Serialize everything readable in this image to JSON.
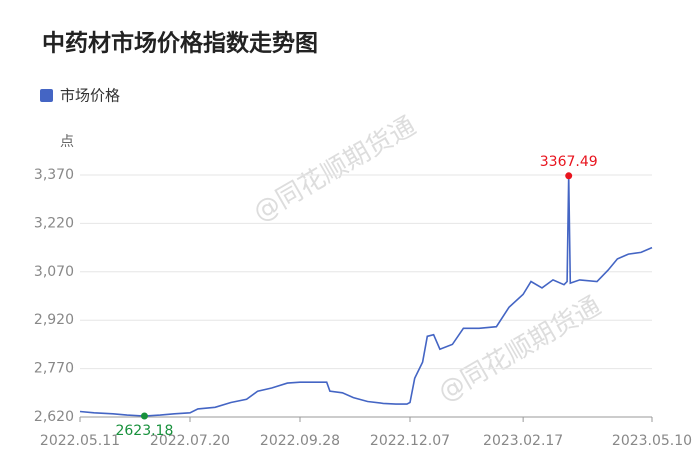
{
  "chart_data": {
    "type": "line",
    "title": "中药材市场价格指数走势图",
    "y_unit": "点",
    "watermark": "@同花顺期货通",
    "x": [
      "2022.05.11",
      "2022.05.20",
      "2022.06.01",
      "2022.06.10",
      "2022.06.21",
      "2022.07.01",
      "2022.07.10",
      "2022.07.20",
      "2022.07.25",
      "2022.08.05",
      "2022.08.15",
      "2022.08.25",
      "2022.09.01",
      "2022.09.10",
      "2022.09.20",
      "2022.09.28",
      "2022.10.05",
      "2022.10.15",
      "2022.10.17",
      "2022.10.25",
      "2022.11.01",
      "2022.11.10",
      "2022.11.20",
      "2022.11.28",
      "2022.12.05",
      "2022.12.07",
      "2022.12.10",
      "2022.12.15",
      "2022.12.18",
      "2022.12.22",
      "2022.12.26",
      "2023.01.03",
      "2023.01.10",
      "2023.01.20",
      "2023.01.31",
      "2023.02.08",
      "2023.02.17",
      "2023.02.22",
      "2023.03.01",
      "2023.03.08",
      "2023.03.15",
      "2023.03.17",
      "2023.03.18",
      "2023.03.19",
      "2023.03.25",
      "2023.04.05",
      "2023.04.12",
      "2023.04.18",
      "2023.04.25",
      "2023.05.03",
      "2023.05.10"
    ],
    "series": [
      {
        "name": "市场价格",
        "color": "#4465c4",
        "values": [
          2637,
          2633,
          2630,
          2626,
          2623.18,
          2626,
          2630,
          2633,
          2645,
          2650,
          2665,
          2675,
          2700,
          2710,
          2725,
          2728,
          2728,
          2728,
          2700,
          2695,
          2680,
          2668,
          2662,
          2660,
          2660,
          2665,
          2740,
          2790,
          2870,
          2875,
          2830,
          2845,
          2895,
          2895,
          2900,
          2960,
          3000,
          3040,
          3020,
          3045,
          3030,
          3040,
          3367.49,
          3035,
          3045,
          3040,
          3075,
          3110,
          3125,
          3130,
          3145
        ]
      }
    ],
    "annotations": [
      {
        "text": "3367.49",
        "index": 42,
        "color": "#e8141e"
      },
      {
        "text": "2623.18",
        "index": 4,
        "color": "#18913c"
      }
    ],
    "xlim": [
      "2022.05.11",
      "2023.05.10"
    ],
    "xticks": [
      "2022.05.11",
      "2022.07.20",
      "2022.09.28",
      "2022.12.07",
      "2023.02.17",
      "2023.05.10"
    ],
    "ylim": [
      2620,
      3370
    ],
    "yticks": [
      {
        "value": 2620,
        "label": "2,620"
      },
      {
        "value": 2770,
        "label": "2,770"
      },
      {
        "value": 2920,
        "label": "2,920"
      },
      {
        "value": 3070,
        "label": "3,070"
      },
      {
        "value": 3220,
        "label": "3,220"
      },
      {
        "value": 3370,
        "label": "3,370"
      }
    ],
    "grid": true
  }
}
